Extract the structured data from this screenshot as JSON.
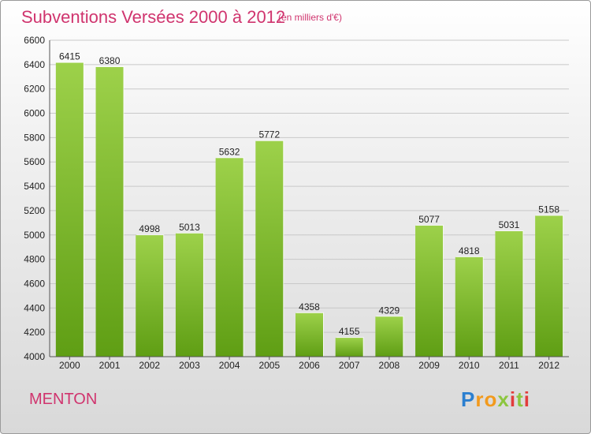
{
  "header": {
    "title": "Subventions Versées 2000 à 2012",
    "subtitle": "(en milliers d'€)"
  },
  "footer": {
    "city": "MENTON",
    "logo": "Proxiti"
  },
  "colors": {
    "title": "#d0346e",
    "bar_top": "#9dd14a",
    "bar_bottom": "#5f9e14",
    "grid": "#c8c8c8"
  },
  "chart_data": {
    "type": "bar",
    "title": "Subventions Versées 2000 à 2012",
    "subtitle": "(en milliers d'€)",
    "categories": [
      "2000",
      "2001",
      "2002",
      "2003",
      "2004",
      "2005",
      "2006",
      "2007",
      "2008",
      "2009",
      "2010",
      "2011",
      "2012"
    ],
    "values": [
      6415,
      6380,
      4998,
      5013,
      5632,
      5772,
      4358,
      4155,
      4329,
      5077,
      4818,
      5031,
      5158
    ],
    "ylim": [
      4000,
      6600
    ],
    "yticks": [
      4000,
      4200,
      4400,
      4600,
      4800,
      5000,
      5200,
      5400,
      5600,
      5800,
      6000,
      6200,
      6400,
      6600
    ],
    "grid": true,
    "xlabel": "",
    "ylabel": ""
  }
}
